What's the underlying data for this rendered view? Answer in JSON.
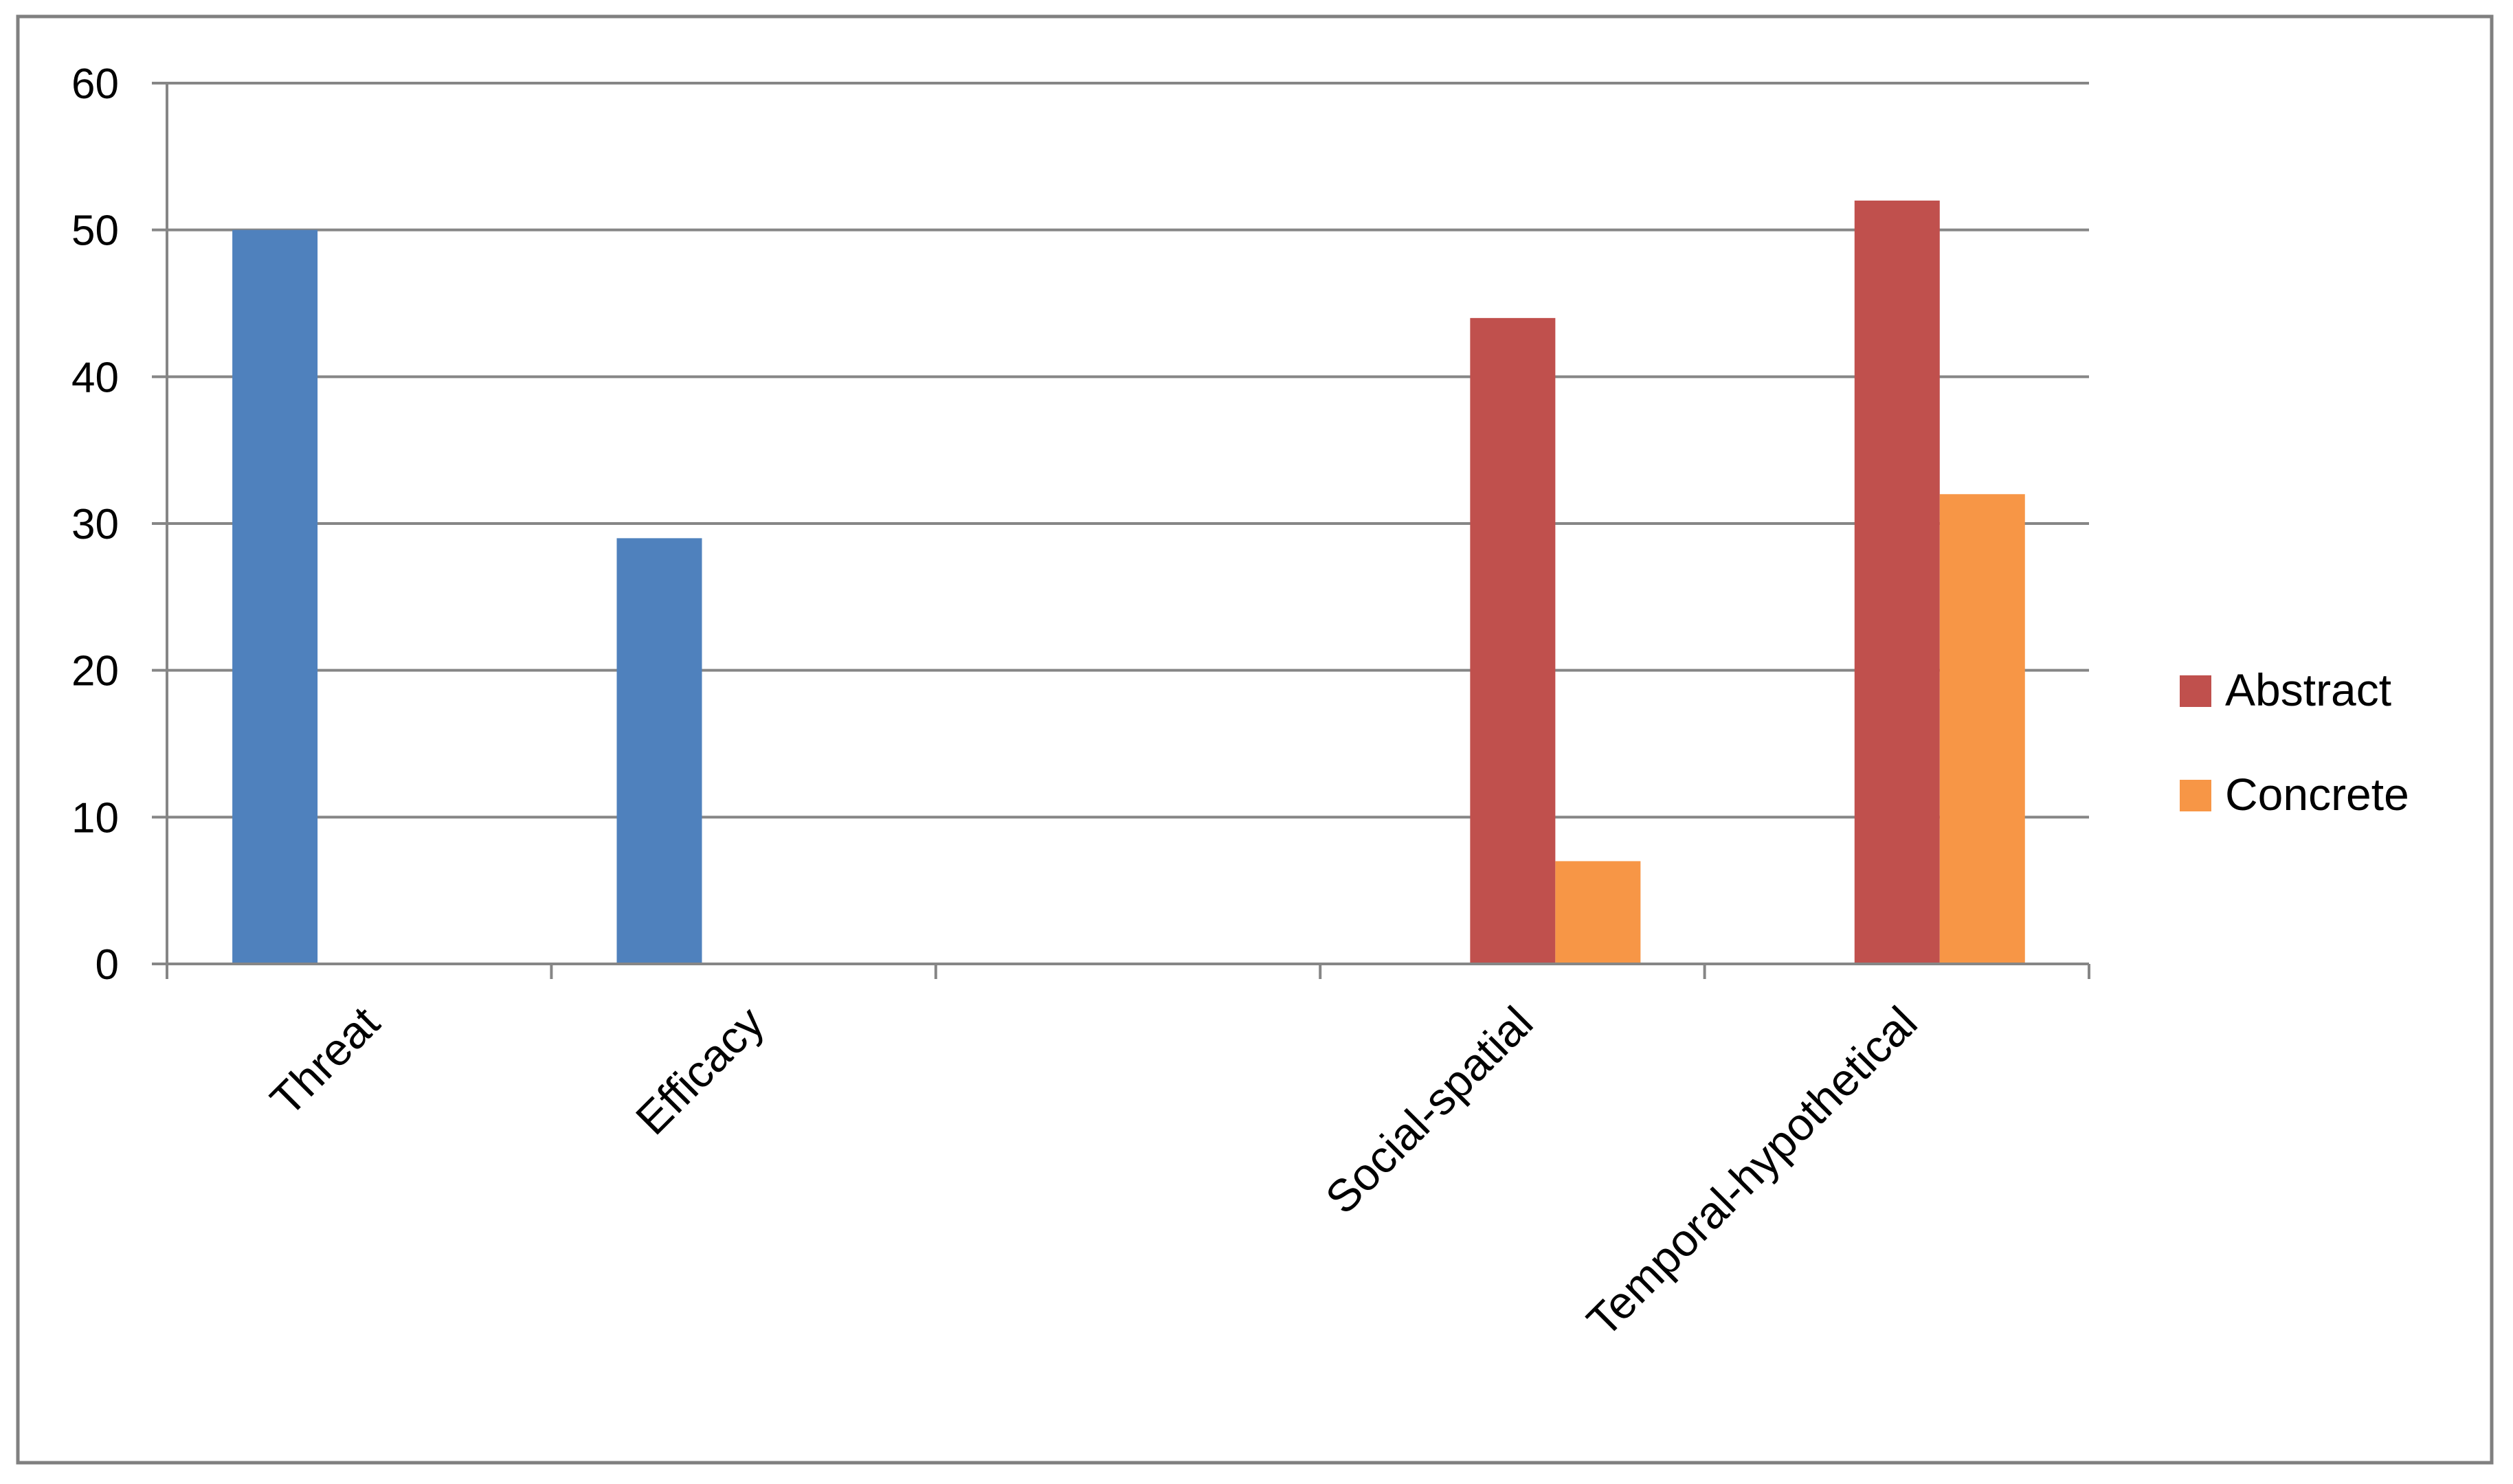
{
  "chart_data": {
    "type": "bar",
    "categories": [
      "Threat",
      "Efficacy",
      "",
      "Social-spatial",
      "Temporal-hypothetical"
    ],
    "series": [
      {
        "name": "",
        "color": "#4F81BD",
        "values": [
          50,
          29,
          null,
          null,
          null
        ],
        "in_legend": false
      },
      {
        "name": "Abstract",
        "color": "#C0504D",
        "values": [
          null,
          null,
          null,
          44,
          52
        ],
        "in_legend": true
      },
      {
        "name": "Concrete",
        "color": "#F79646",
        "values": [
          null,
          null,
          null,
          7,
          32
        ],
        "in_legend": true
      }
    ],
    "title": "",
    "xlabel": "",
    "ylabel": "",
    "ylim": [
      0,
      60
    ],
    "yticks": [
      0,
      10,
      20,
      30,
      40,
      50,
      60
    ],
    "grid": true,
    "legend_position": "right"
  }
}
